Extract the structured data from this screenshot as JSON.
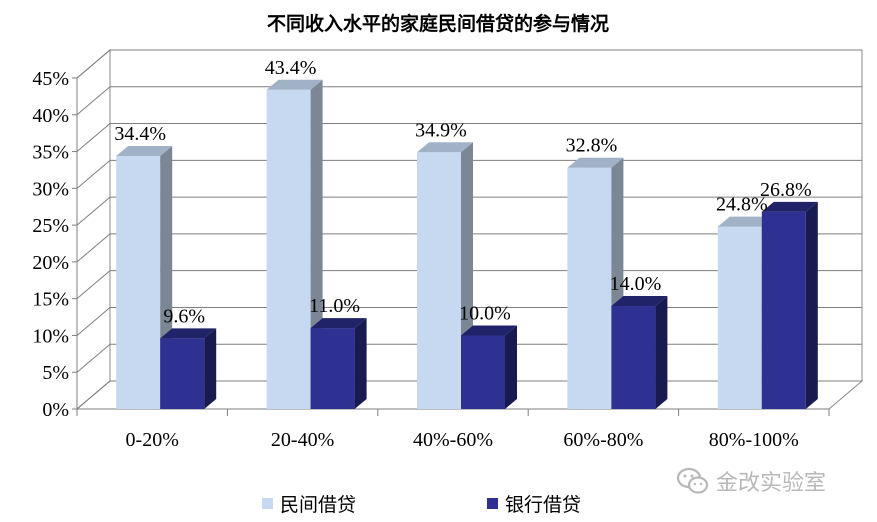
{
  "chart_data": {
    "type": "bar",
    "title": "不同收入水平的家庭民间借贷的参与情况",
    "xlabel": "",
    "ylabel": "",
    "categories": [
      "0-20%",
      "20-40%",
      "40%-60%",
      "60%-80%",
      "80%-100%"
    ],
    "series": [
      {
        "name": "民间借贷",
        "values": [
          34.4,
          43.4,
          34.9,
          32.8,
          24.8
        ],
        "labels": [
          "34.4%",
          "43.4%",
          "34.9%",
          "32.8%",
          "24.8%"
        ],
        "color": "#c6d9f1"
      },
      {
        "name": "银行借贷",
        "values": [
          9.6,
          11.0,
          10.0,
          14.0,
          26.8
        ],
        "labels": [
          "9.6%",
          "11.0%",
          "10.0%",
          "14.0%",
          "26.8%"
        ],
        "color": "#2e3192"
      }
    ],
    "ylim": [
      0,
      45
    ],
    "yticks": [
      "0%",
      "5%",
      "10%",
      "15%",
      "20%",
      "25%",
      "30%",
      "35%",
      "40%",
      "45%"
    ],
    "grid": true,
    "legend": "bottom",
    "style": "3d-column"
  },
  "watermark": {
    "text": "金改实验室",
    "icon": "wechat-icon"
  }
}
